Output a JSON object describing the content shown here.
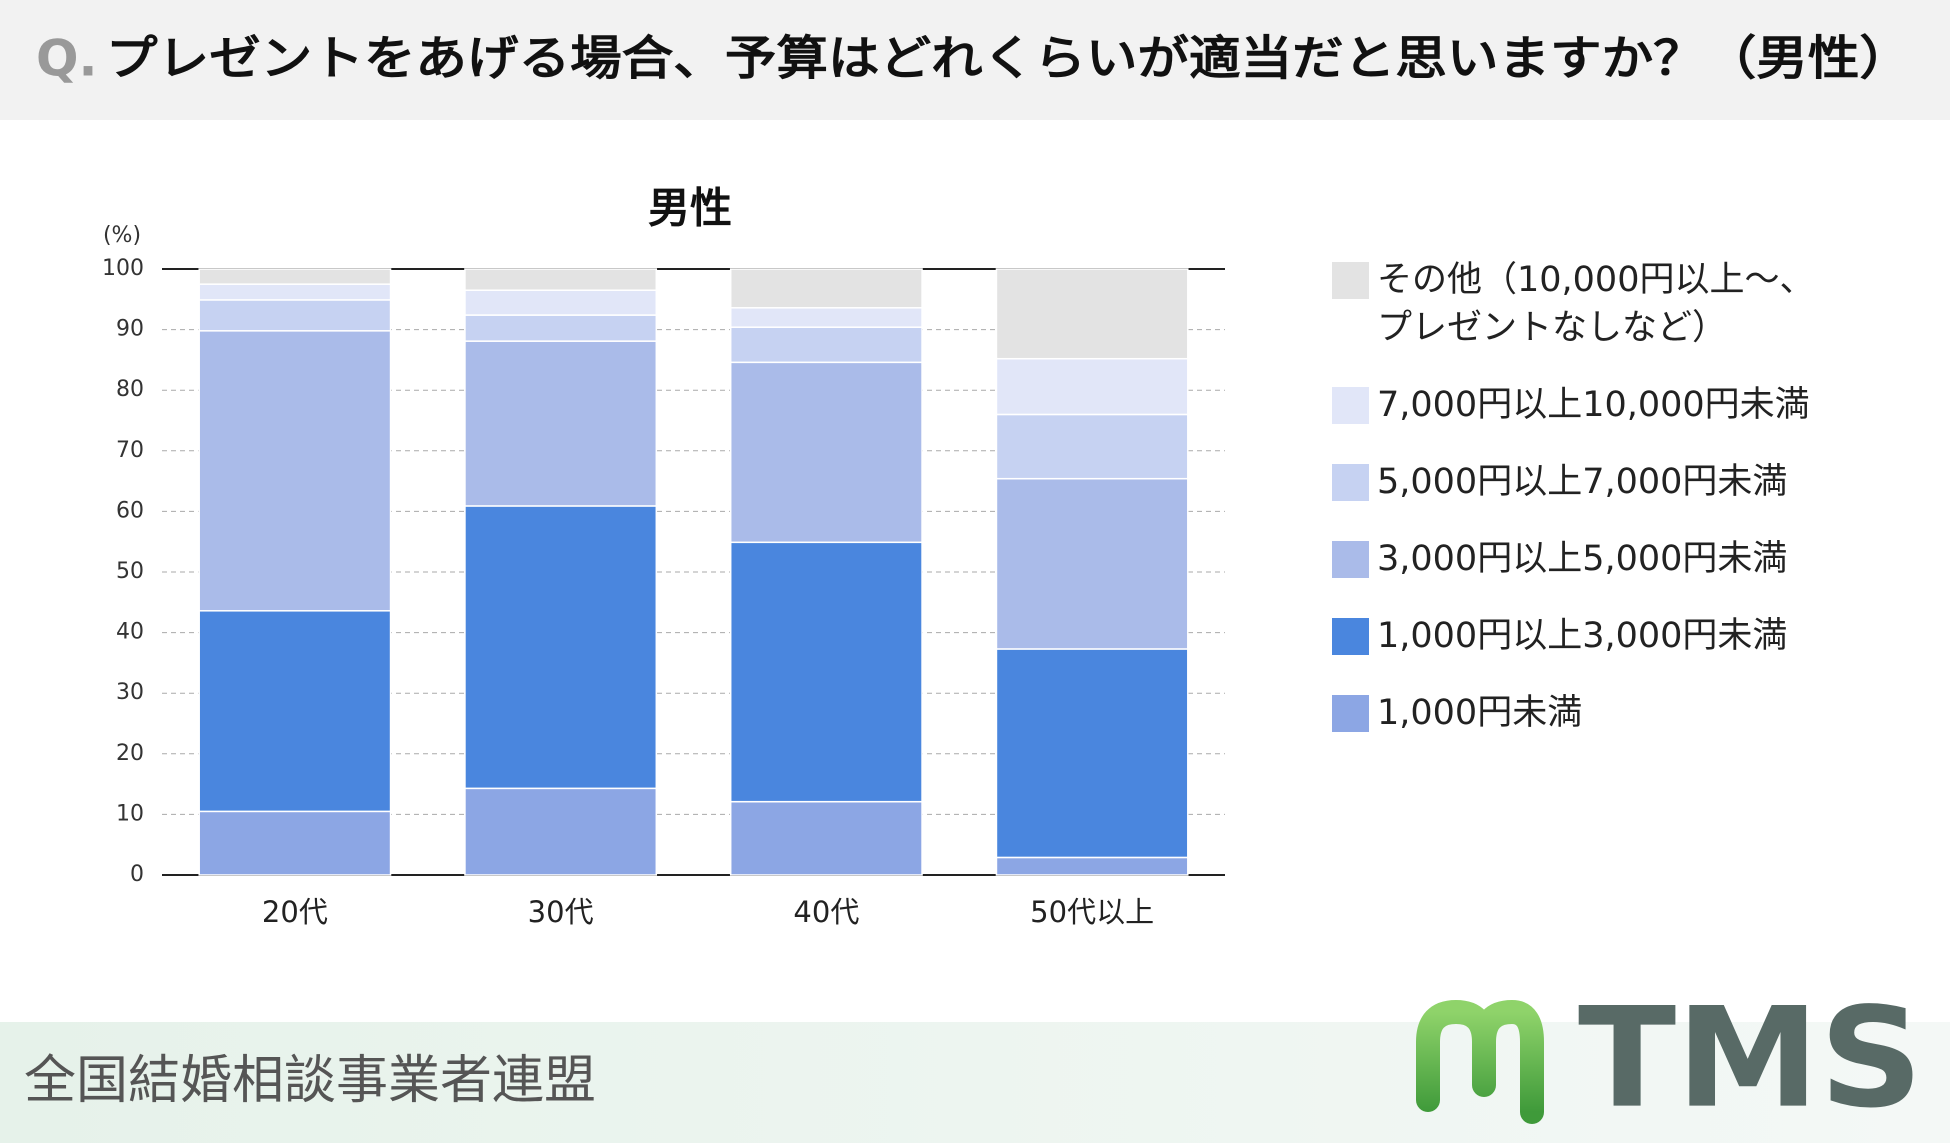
{
  "header": {
    "q": "Q.",
    "title": "プレゼントをあげる場合、予算はどれくらいが適当だと思いますか？（男性）"
  },
  "chart_data": {
    "type": "bar",
    "stacked": true,
    "title": "男性",
    "ylabel": "(%)",
    "categories": [
      "20代",
      "30代",
      "40代",
      "50代以上"
    ],
    "series": [
      {
        "name": "1,000円未満",
        "color": "#8ca6e4",
        "values": [
          10.5,
          14.3,
          12.1,
          2.9
        ]
      },
      {
        "name": "1,000円以上3,000円未満",
        "color": "#4a86de",
        "values": [
          33.1,
          46.6,
          42.8,
          34.4
        ]
      },
      {
        "name": "3,000円以上5,000円未満",
        "color": "#aabbe9",
        "values": [
          46.2,
          27.2,
          29.7,
          28.1
        ]
      },
      {
        "name": "5,000円以上7,000円未満",
        "color": "#c6d2f2",
        "values": [
          5.1,
          4.3,
          5.8,
          10.6
        ]
      },
      {
        "name": "7,000円以上10,000円未満",
        "color": "#e1e6f8",
        "values": [
          2.6,
          4.1,
          3.2,
          9.2
        ]
      },
      {
        "name": "その他（10,000円以上～、プレゼントなしなど）",
        "color": "#e3e3e3",
        "values": [
          2.5,
          3.5,
          6.4,
          14.8
        ]
      }
    ],
    "ylim": [
      0,
      100
    ],
    "yticks": [
      0,
      10,
      20,
      30,
      40,
      50,
      60,
      70,
      80,
      90,
      100
    ],
    "grid": true,
    "legend": "right"
  },
  "footer": {
    "org": "全国結婚相談事業者連盟",
    "logo": "TMS"
  }
}
